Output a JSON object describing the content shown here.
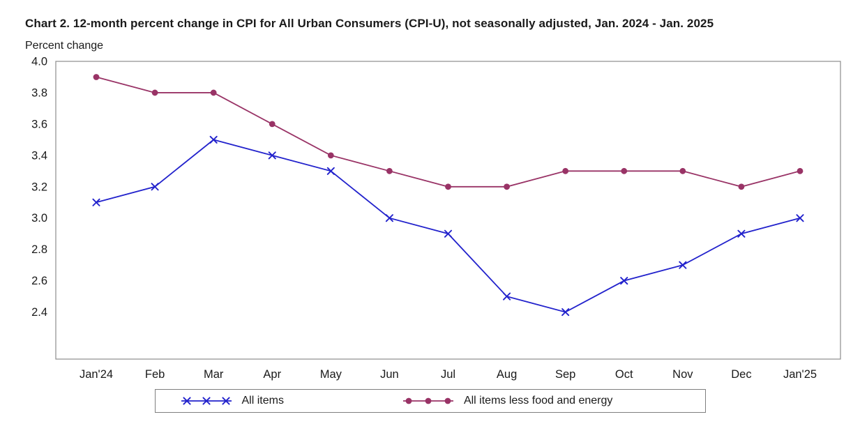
{
  "chart_data": {
    "type": "line",
    "title": "Chart 2. 12-month percent change in CPI for All Urban Consumers (CPI-U), not seasonally adjusted, Jan. 2024 - Jan. 2025",
    "ylabel": "Percent change",
    "xlabel": "",
    "categories": [
      "Jan'24",
      "Feb",
      "Mar",
      "Apr",
      "May",
      "Jun",
      "Jul",
      "Aug",
      "Sep",
      "Oct",
      "Nov",
      "Dec",
      "Jan'25"
    ],
    "series": [
      {
        "name": "All items",
        "marker": "x",
        "color": "#2222cc",
        "values": [
          3.1,
          3.2,
          3.5,
          3.4,
          3.3,
          3.0,
          2.9,
          2.5,
          2.4,
          2.6,
          2.7,
          2.9,
          3.0
        ]
      },
      {
        "name": "All items less food and energy",
        "marker": "circle",
        "color": "#993366",
        "values": [
          3.9,
          3.8,
          3.8,
          3.6,
          3.4,
          3.3,
          3.2,
          3.2,
          3.3,
          3.3,
          3.3,
          3.2,
          3.3
        ]
      }
    ],
    "ylim": [
      2.1,
      4.0
    ],
    "yticks": [
      2.4,
      2.6,
      2.8,
      3.0,
      3.2,
      3.4,
      3.6,
      3.8,
      4.0
    ],
    "grid": false,
    "legend_position": "bottom",
    "axis_color": "#8c8c8c",
    "text_color": "#1a1a1a"
  }
}
